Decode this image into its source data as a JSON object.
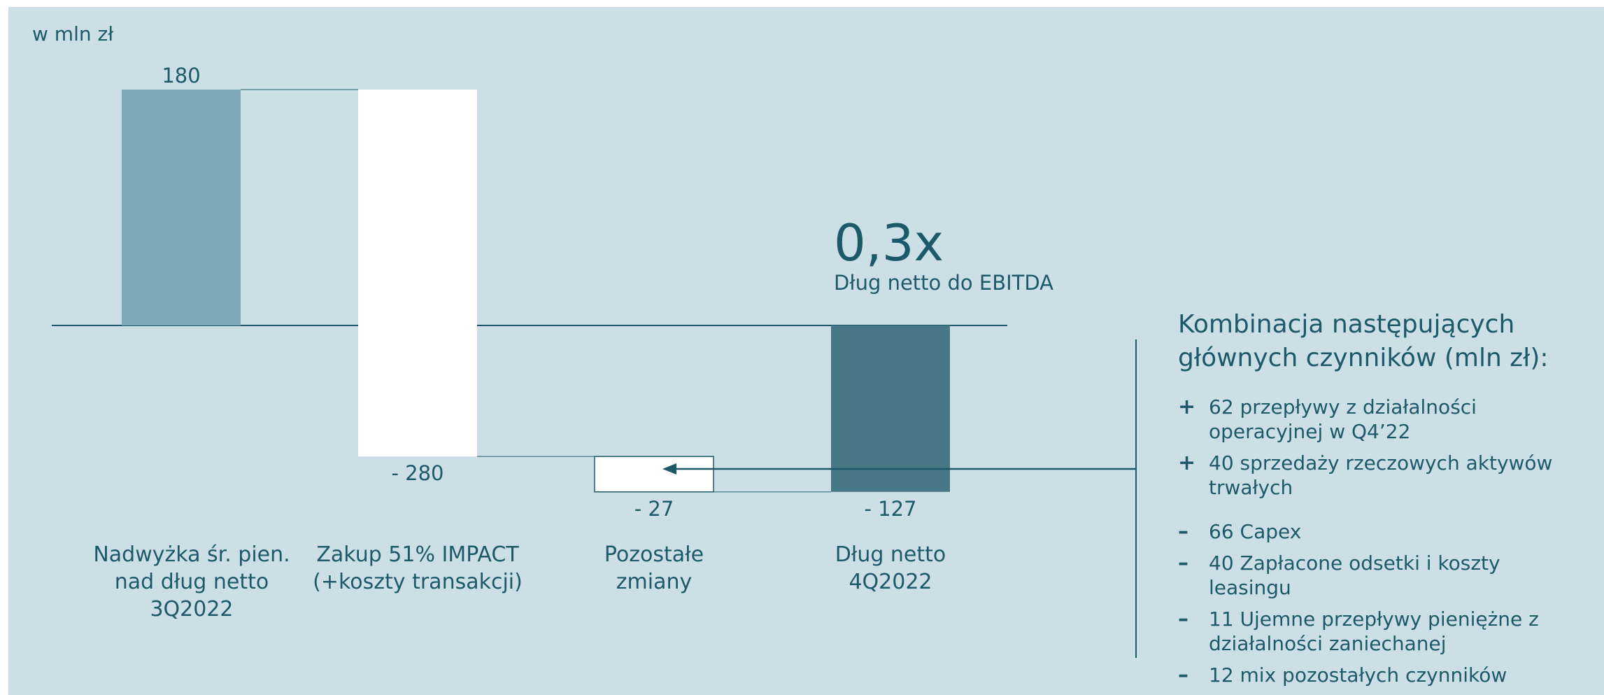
{
  "chart_data": {
    "type": "waterfall",
    "unit_label": "w mln zł",
    "categories": [
      [
        "Nadwyżka śr. pien.",
        "nad dług netto",
        "3Q2022"
      ],
      [
        "Zakup 51% IMPACT",
        "(+koszty transakcji)"
      ],
      [
        "Pozostałe",
        "zmiany"
      ],
      [
        "Dług netto",
        "4Q2022"
      ]
    ],
    "values": [
      180,
      -280,
      -27,
      -127
    ],
    "value_labels": [
      "180",
      "- 280",
      "- 27",
      "- 127"
    ],
    "kinds": [
      "total",
      "delta",
      "delta",
      "total"
    ],
    "ylim": [
      -180,
      190
    ],
    "callout": {
      "value": "0,3x",
      "label": "Dług netto do EBITDA"
    }
  },
  "colors": {
    "background": "#cddfe6",
    "text": "#1d5a69",
    "bar_start": "#7eaab8",
    "bar_delta": "#ffffff",
    "bar_end": "#487886",
    "line": "#1d5a69"
  },
  "side_panel": {
    "title": "Kombinacja następujących głównych czynników (mln zł):",
    "items": [
      {
        "sign": "+",
        "text": "62 przepływy z  działalności operacyjnej w Q4’22"
      },
      {
        "sign": "+",
        "text": "40 sprzedaży rzeczowych aktywów trwałych"
      },
      {
        "sign": "–",
        "text": "66 Capex"
      },
      {
        "sign": "–",
        "text": "40 Zapłacone odsetki i koszty leasingu"
      },
      {
        "sign": "–",
        "text": "11 Ujemne przepływy pieniężne z działalności zaniechanej"
      },
      {
        "sign": "–",
        "text": "12 mix pozostałych czynników"
      }
    ]
  }
}
